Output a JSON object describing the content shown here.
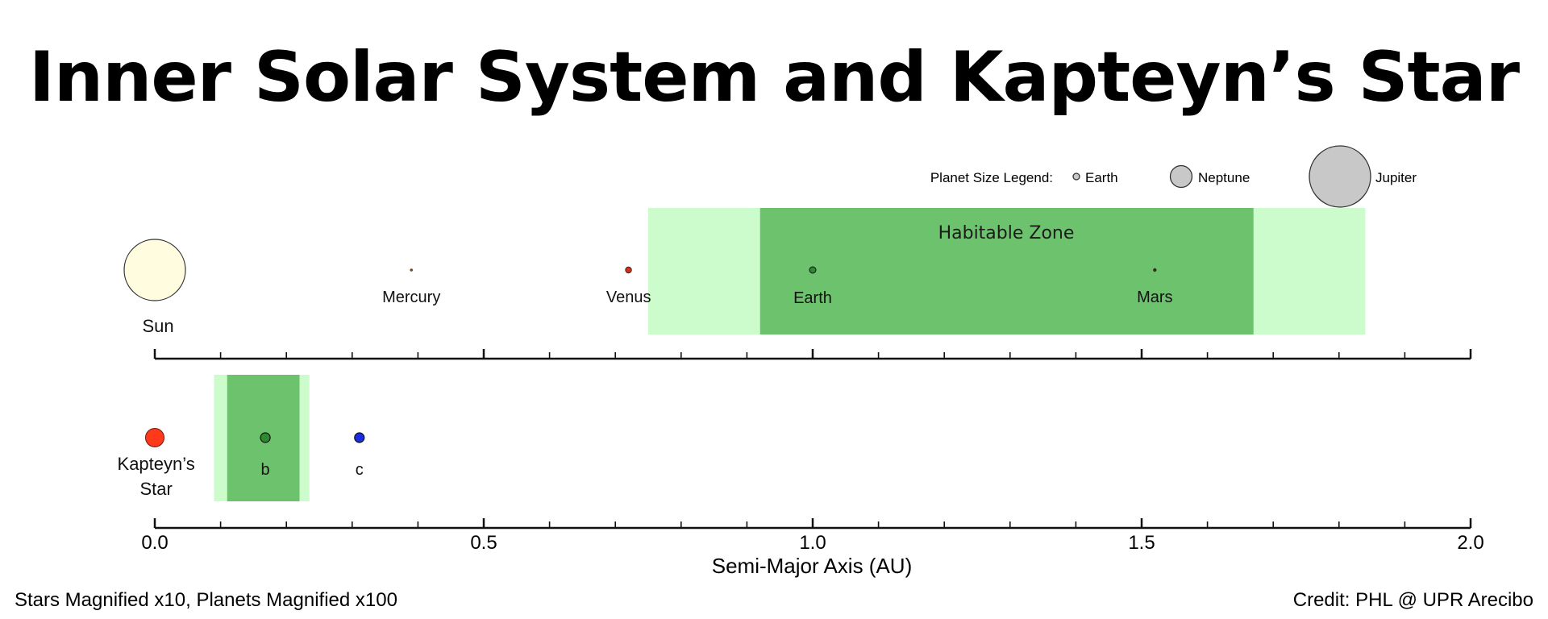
{
  "title": "Inner Solar System and Kapteyn’s Star",
  "legend": {
    "label": "Planet Size Legend:",
    "items": [
      "Earth",
      "Neptune",
      "Jupiter"
    ]
  },
  "habitable_zone_label": "Habitable Zone",
  "colors": {
    "hz_optimistic": "#ccfccc",
    "hz_conservative": "#6dc36d",
    "sun": "#fffce0",
    "kapteyn_star": "#ff3a1a",
    "venus": "#d2301c",
    "earth_green": "#2e8a2e",
    "kapteyn_c": "#1a2ee0",
    "legend_fill": "#c8c8c8"
  },
  "solar_system": {
    "star": {
      "label": "Sun",
      "a": 0.0
    },
    "planets": [
      {
        "label": "Mercury",
        "a": 0.39
      },
      {
        "label": "Venus",
        "a": 0.72
      },
      {
        "label": "Earth",
        "a": 1.0
      },
      {
        "label": "Mars",
        "a": 1.52
      }
    ],
    "hz_optimistic": [
      0.75,
      1.84
    ],
    "hz_conservative": [
      0.92,
      1.67
    ]
  },
  "kapteyn_system": {
    "star": {
      "label_line1": "Kapteyn’s",
      "label_line2": "Star",
      "a": 0.0
    },
    "planets": [
      {
        "label": "b",
        "a": 0.168
      },
      {
        "label": "c",
        "a": 0.311
      }
    ],
    "hz_optimistic": [
      0.09,
      0.235
    ],
    "hz_conservative": [
      0.11,
      0.22
    ]
  },
  "axis": {
    "xlabel": "Semi-Major Axis (AU)",
    "ticks": [
      "0.0",
      "0.5",
      "1.0",
      "1.5",
      "2.0"
    ],
    "range": [
      0.0,
      2.0
    ]
  },
  "footer": {
    "left": "Stars Magnified x10, Planets Magnified x100",
    "right": "Credit: PHL @ UPR Arecibo"
  }
}
